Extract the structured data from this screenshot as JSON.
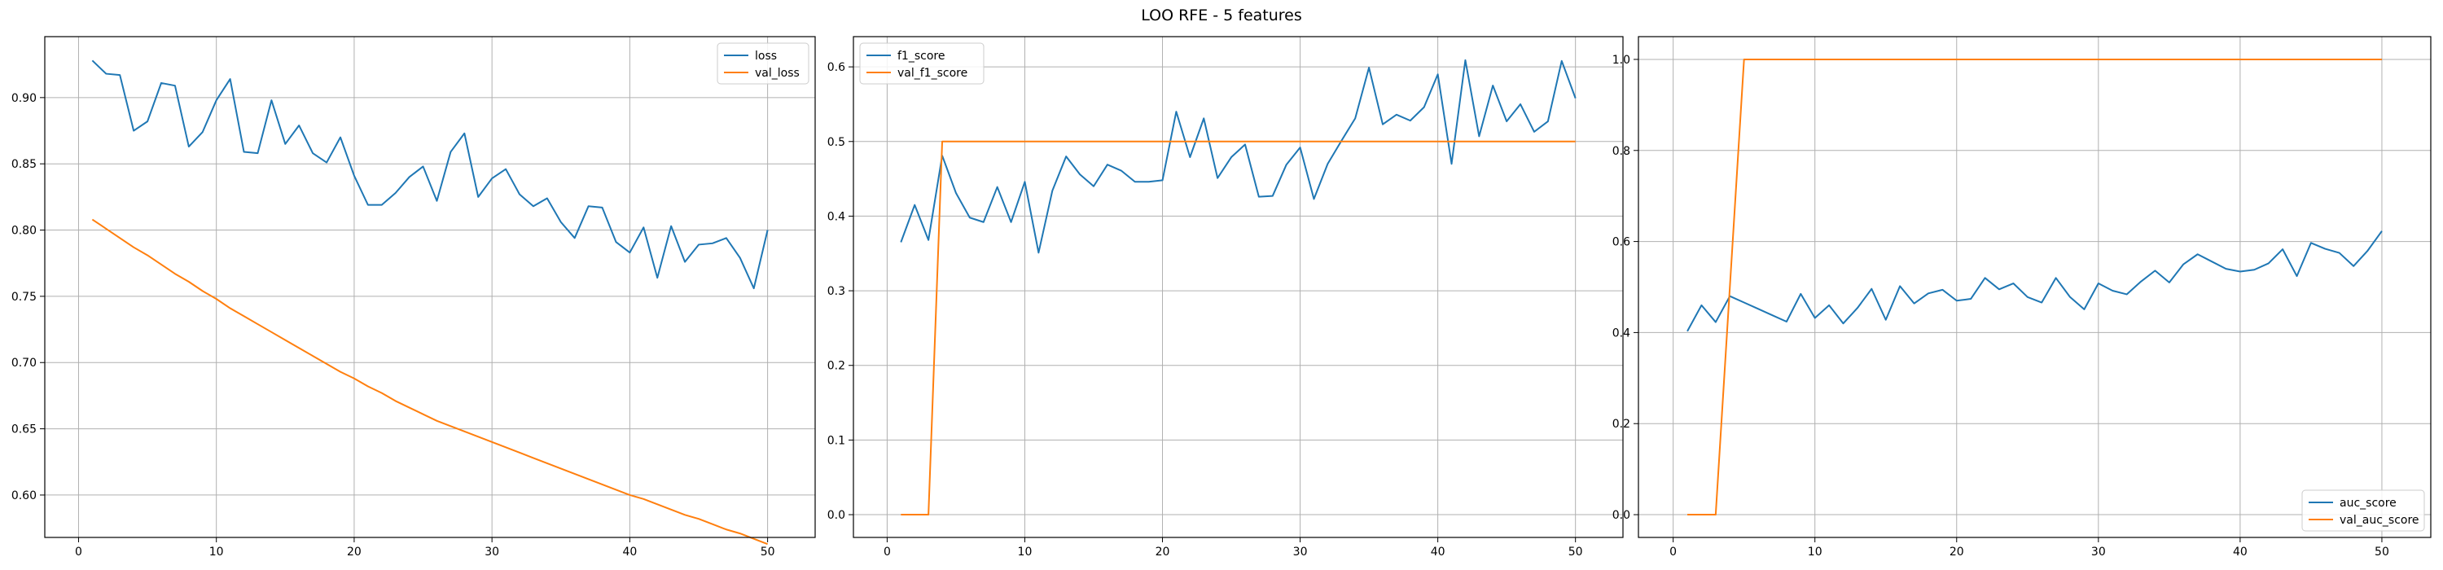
{
  "figure": {
    "title": "LOO RFE - 5 features",
    "colors": {
      "series_1": "#1f77b4",
      "series_2": "#ff7f0e",
      "grid": "#b0b0b0"
    }
  },
  "chart_data": [
    {
      "type": "line",
      "title": "",
      "xlabel": "",
      "ylabel": "",
      "xlim": [
        -2.45,
        53.45
      ],
      "ylim": [
        0.568,
        0.946
      ],
      "xticks": [
        0,
        10,
        20,
        30,
        40,
        50
      ],
      "yticks": [
        0.6,
        0.65,
        0.7,
        0.75,
        0.8,
        0.85,
        0.9
      ],
      "ytick_labels": [
        "0.60",
        "0.65",
        "0.70",
        "0.75",
        "0.80",
        "0.85",
        "0.90"
      ],
      "grid": true,
      "legend_position": "upper right",
      "x": [
        1,
        2,
        3,
        4,
        5,
        6,
        7,
        8,
        9,
        10,
        11,
        12,
        13,
        14,
        15,
        16,
        17,
        18,
        19,
        20,
        21,
        22,
        23,
        24,
        25,
        26,
        27,
        28,
        29,
        30,
        31,
        32,
        33,
        34,
        35,
        36,
        37,
        38,
        39,
        40,
        41,
        42,
        43,
        44,
        45,
        46,
        47,
        48,
        49,
        50
      ],
      "series": [
        {
          "name": "loss",
          "color": "#1f77b4",
          "values": [
            0.928,
            0.918,
            0.917,
            0.875,
            0.882,
            0.911,
            0.909,
            0.863,
            0.874,
            0.898,
            0.914,
            0.859,
            0.858,
            0.898,
            0.865,
            0.879,
            0.858,
            0.851,
            0.87,
            0.841,
            0.819,
            0.819,
            0.828,
            0.84,
            0.848,
            0.822,
            0.859,
            0.873,
            0.825,
            0.839,
            0.846,
            0.827,
            0.818,
            0.824,
            0.806,
            0.794,
            0.818,
            0.817,
            0.791,
            0.783,
            0.802,
            0.764,
            0.803,
            0.776,
            0.789,
            0.79,
            0.794,
            0.779,
            0.756,
            0.8
          ]
        },
        {
          "name": "val_loss",
          "color": "#ff7f0e",
          "values": [
            0.808,
            0.801,
            0.794,
            0.787,
            0.781,
            0.774,
            0.767,
            0.761,
            0.754,
            0.748,
            0.741,
            0.735,
            0.729,
            0.723,
            0.717,
            0.711,
            0.705,
            0.699,
            0.693,
            0.688,
            0.682,
            0.677,
            0.671,
            0.666,
            0.661,
            0.656,
            0.652,
            0.648,
            0.644,
            0.64,
            0.636,
            0.632,
            0.628,
            0.624,
            0.62,
            0.616,
            0.612,
            0.608,
            0.604,
            0.6,
            0.597,
            0.593,
            0.589,
            0.585,
            0.582,
            0.578,
            0.574,
            0.571,
            0.567,
            0.563
          ]
        }
      ]
    },
    {
      "type": "line",
      "title": "",
      "xlabel": "",
      "ylabel": "",
      "xlim": [
        -2.45,
        53.45
      ],
      "ylim": [
        -0.0305,
        0.6405
      ],
      "xticks": [
        0,
        10,
        20,
        30,
        40,
        50
      ],
      "yticks": [
        0.0,
        0.1,
        0.2,
        0.3,
        0.4,
        0.5,
        0.6
      ],
      "ytick_labels": [
        "0.0",
        "0.1",
        "0.2",
        "0.3",
        "0.4",
        "0.5",
        "0.6"
      ],
      "grid": true,
      "legend_position": "upper left",
      "x": [
        1,
        2,
        3,
        4,
        5,
        6,
        7,
        8,
        9,
        10,
        11,
        12,
        13,
        14,
        15,
        16,
        17,
        18,
        19,
        20,
        21,
        22,
        23,
        24,
        25,
        26,
        27,
        28,
        29,
        30,
        31,
        32,
        33,
        34,
        35,
        36,
        37,
        38,
        39,
        40,
        41,
        42,
        43,
        44,
        45,
        46,
        47,
        48,
        49,
        50
      ],
      "series": [
        {
          "name": "f1_score",
          "color": "#1f77b4",
          "values": [
            0.365,
            0.415,
            0.368,
            0.481,
            0.431,
            0.398,
            0.392,
            0.439,
            0.392,
            0.446,
            0.351,
            0.434,
            0.48,
            0.456,
            0.44,
            0.469,
            0.461,
            0.446,
            0.446,
            0.448,
            0.54,
            0.479,
            0.531,
            0.451,
            0.479,
            0.496,
            0.426,
            0.427,
            0.469,
            0.492,
            0.423,
            0.47,
            0.501,
            0.531,
            0.599,
            0.523,
            0.536,
            0.528,
            0.546,
            0.59,
            0.47,
            0.609,
            0.507,
            0.575,
            0.527,
            0.55,
            0.513,
            0.527,
            0.608,
            0.558
          ]
        },
        {
          "name": "val_f1_score",
          "color": "#ff7f0e",
          "values": [
            0.0,
            0.0,
            0.0,
            0.5,
            0.5,
            0.5,
            0.5,
            0.5,
            0.5,
            0.5,
            0.5,
            0.5,
            0.5,
            0.5,
            0.5,
            0.5,
            0.5,
            0.5,
            0.5,
            0.5,
            0.5,
            0.5,
            0.5,
            0.5,
            0.5,
            0.5,
            0.5,
            0.5,
            0.5,
            0.5,
            0.5,
            0.5,
            0.5,
            0.5,
            0.5,
            0.5,
            0.5,
            0.5,
            0.5,
            0.5,
            0.5,
            0.5,
            0.5,
            0.5,
            0.5,
            0.5,
            0.5,
            0.5,
            0.5,
            0.5
          ]
        }
      ]
    },
    {
      "type": "line",
      "title": "",
      "xlabel": "",
      "ylabel": "",
      "xlim": [
        -2.45,
        53.45
      ],
      "ylim": [
        -0.05,
        1.05
      ],
      "xticks": [
        0,
        10,
        20,
        30,
        40,
        50
      ],
      "yticks": [
        0.0,
        0.2,
        0.4,
        0.6,
        0.8,
        1.0
      ],
      "ytick_labels": [
        "0.0",
        "0.2",
        "0.4",
        "0.6",
        "0.8",
        "1.0"
      ],
      "grid": true,
      "legend_position": "lower right",
      "x": [
        1,
        2,
        3,
        4,
        5,
        6,
        7,
        8,
        9,
        10,
        11,
        12,
        13,
        14,
        15,
        16,
        17,
        18,
        19,
        20,
        21,
        22,
        23,
        24,
        25,
        26,
        27,
        28,
        29,
        30,
        31,
        32,
        33,
        34,
        35,
        36,
        37,
        38,
        39,
        40,
        41,
        42,
        43,
        44,
        45,
        46,
        47,
        48,
        49,
        50
      ],
      "series": [
        {
          "name": "auc_score",
          "color": "#1f77b4",
          "values": [
            0.403,
            0.46,
            0.423,
            0.48,
            0.466,
            0.452,
            0.438,
            0.424,
            0.485,
            0.432,
            0.46,
            0.42,
            0.454,
            0.496,
            0.428,
            0.502,
            0.464,
            0.486,
            0.494,
            0.47,
            0.474,
            0.52,
            0.495,
            0.508,
            0.478,
            0.466,
            0.52,
            0.478,
            0.451,
            0.508,
            0.492,
            0.484,
            0.512,
            0.536,
            0.51,
            0.55,
            0.572,
            0.556,
            0.54,
            0.534,
            0.538,
            0.552,
            0.583,
            0.524,
            0.597,
            0.584,
            0.575,
            0.546,
            0.58,
            0.623
          ]
        },
        {
          "name": "val_auc_score",
          "color": "#ff7f0e",
          "values": [
            0.0,
            0.0,
            0.0,
            0.5,
            1.0,
            1.0,
            1.0,
            1.0,
            1.0,
            1.0,
            1.0,
            1.0,
            1.0,
            1.0,
            1.0,
            1.0,
            1.0,
            1.0,
            1.0,
            1.0,
            1.0,
            1.0,
            1.0,
            1.0,
            1.0,
            1.0,
            1.0,
            1.0,
            1.0,
            1.0,
            1.0,
            1.0,
            1.0,
            1.0,
            1.0,
            1.0,
            1.0,
            1.0,
            1.0,
            1.0,
            1.0,
            1.0,
            1.0,
            1.0,
            1.0,
            1.0,
            1.0,
            1.0,
            1.0,
            1.0
          ]
        }
      ]
    }
  ]
}
